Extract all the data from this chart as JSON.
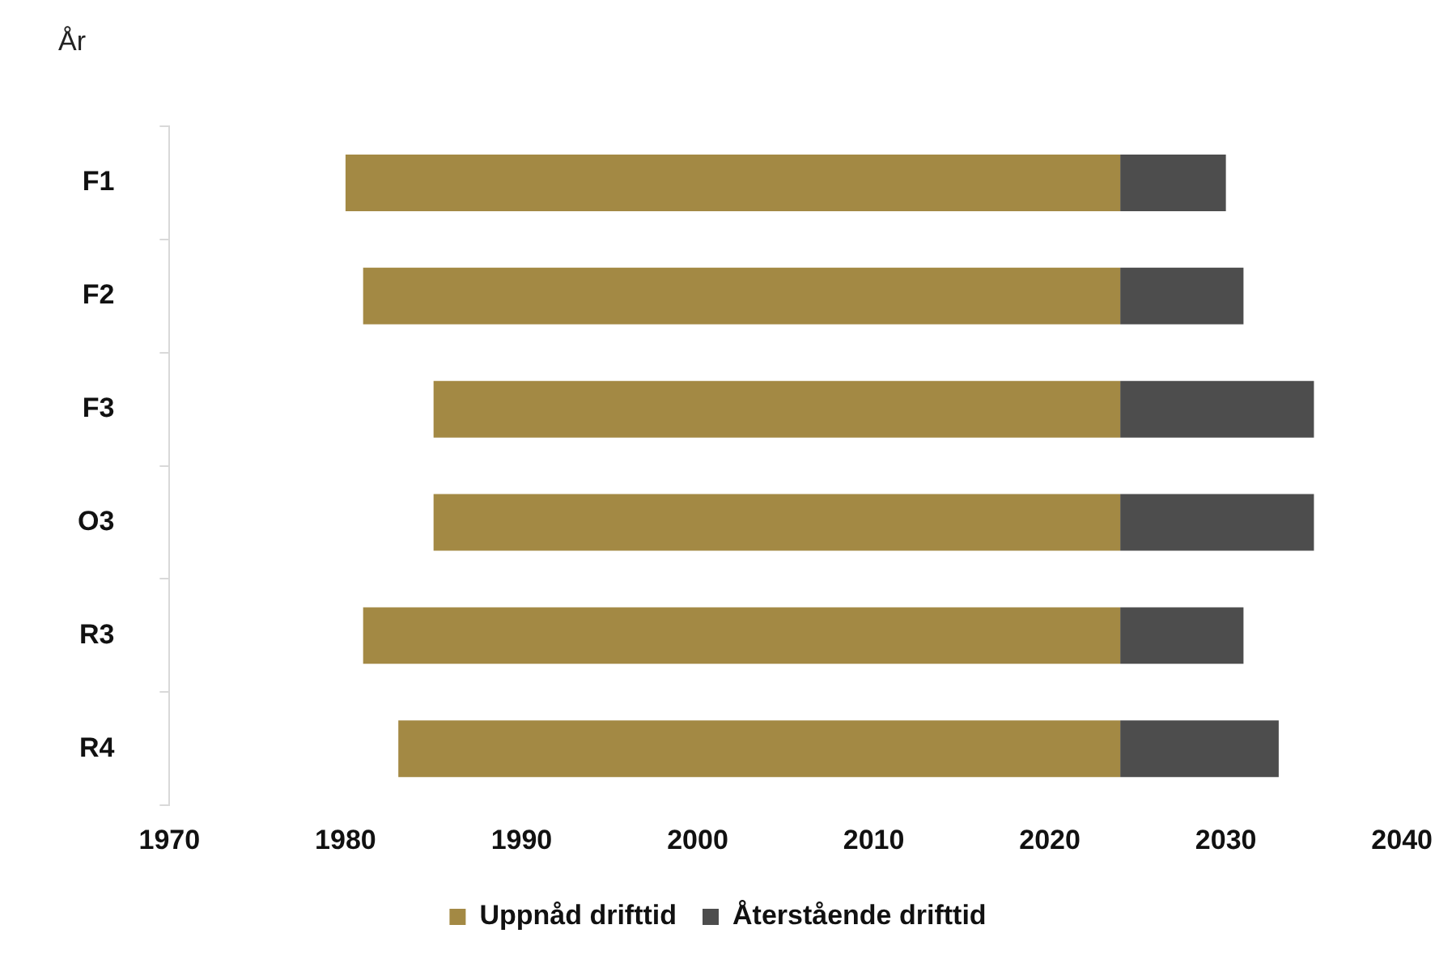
{
  "chart_data": {
    "type": "bar",
    "orientation": "horizontal",
    "ylabel": "År",
    "categories": [
      "F1",
      "F2",
      "F3",
      "O3",
      "R3",
      "R4"
    ],
    "series": [
      {
        "name": "Uppnåd drifttid",
        "color": "#a38944",
        "base": [
          1980,
          1981,
          1985,
          1985,
          1981,
          1983
        ],
        "values": [
          44,
          43,
          39,
          39,
          43,
          41
        ]
      },
      {
        "name": "Återstående drifttid",
        "color": "#4d4d4d",
        "base": [
          2024,
          2024,
          2024,
          2024,
          2024,
          2024
        ],
        "values": [
          6,
          7,
          11,
          11,
          7,
          9
        ]
      }
    ],
    "xlim": [
      1970,
      2040
    ],
    "xticks": [
      1970,
      1980,
      1990,
      2000,
      2010,
      2020,
      2030,
      2040
    ],
    "grid": false,
    "legend": "bottom"
  }
}
